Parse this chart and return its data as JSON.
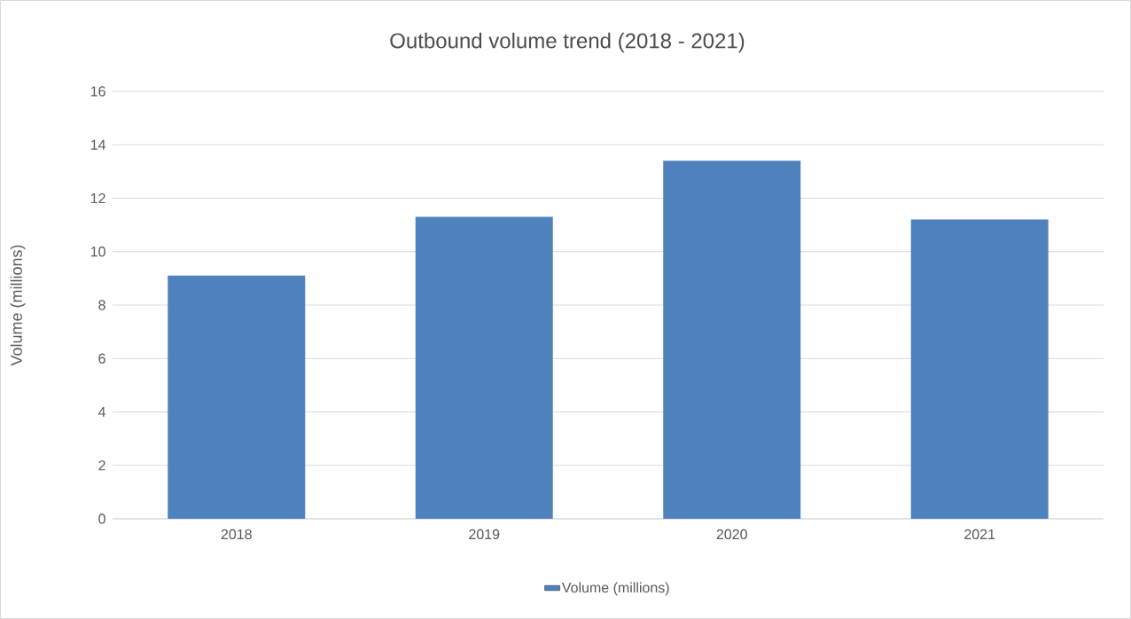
{
  "chart_data": {
    "type": "bar",
    "title": "Outbound volume trend (2018 - 2021)",
    "ylabel": "Volume (millions)",
    "categories": [
      "2018",
      "2019",
      "2020",
      "2021"
    ],
    "series": [
      {
        "name": "Volume (millions)",
        "color": "#4f81bd",
        "values": [
          9.1,
          11.3,
          13.4,
          11.2
        ]
      }
    ],
    "ylim": [
      0,
      16
    ],
    "yticks": [
      0,
      2,
      4,
      6,
      8,
      10,
      12,
      14,
      16
    ],
    "grid": "y",
    "legend": "bottom"
  }
}
